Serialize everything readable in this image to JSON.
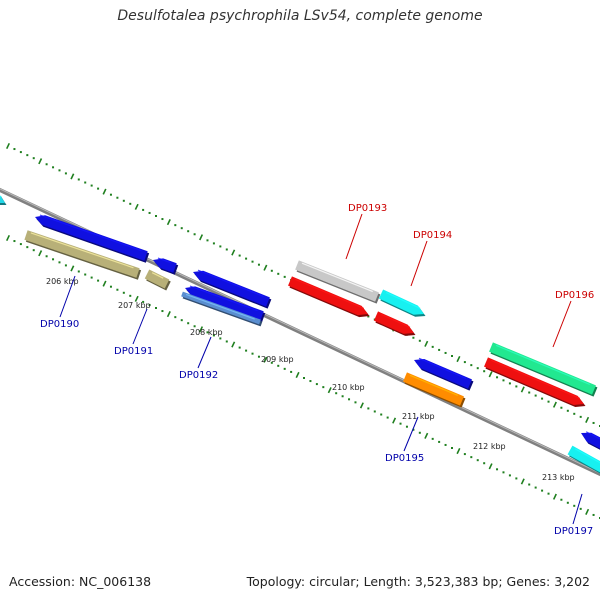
{
  "title": "Desulfotalea psychrophila LSv54, complete genome",
  "footer": {
    "accession": "Accession: NC_006138",
    "summary": "Topology: circular; Length: 3,523,383 bp; Genes: 3,202"
  },
  "colors": {
    "dots": "#1f7f1f",
    "backbone": "#808080",
    "label_forward": "#cc0000",
    "label_reverse": "#0000aa"
  },
  "tick_labels": [
    "206 kbp",
    "207 kbp",
    "208 kbp",
    "209 kbp",
    "210 kbp",
    "211 kbp",
    "212 kbp",
    "213 kbp"
  ],
  "genes": [
    {
      "label": "",
      "strand": "reverse",
      "color": "#22d8e8"
    },
    {
      "label": "DP0190",
      "strand": "reverse",
      "color": "#1010e0"
    },
    {
      "label": "",
      "strand": "reverse",
      "color": "#b8b078"
    },
    {
      "label": "",
      "strand": "reverse",
      "color": "#b8b078"
    },
    {
      "label": "",
      "strand": "reverse",
      "color": "#1010e0"
    },
    {
      "label": "DP0191",
      "strand": "reverse",
      "color": "#1010e0"
    },
    {
      "label": "",
      "strand": "reverse",
      "color": "#1010e0"
    },
    {
      "label": "DP0192",
      "strand": "reverse",
      "color": "#5a8ed0"
    },
    {
      "label": "",
      "strand": "forward",
      "color": "#c8c8c8"
    },
    {
      "label": "DP0193",
      "strand": "forward",
      "color": "#ee1010"
    },
    {
      "label": "DP0194",
      "strand": "forward",
      "color": "#18f0f0"
    },
    {
      "label": "",
      "strand": "forward",
      "color": "#ee1010"
    },
    {
      "label": "",
      "strand": "reverse",
      "color": "#1010e0"
    },
    {
      "label": "DP0195",
      "strand": "reverse",
      "color": "#ff8c00"
    },
    {
      "label": "",
      "strand": "forward",
      "color": "#22e890"
    },
    {
      "label": "DP0196",
      "strand": "forward",
      "color": "#ee1010"
    },
    {
      "label": "",
      "strand": "reverse",
      "color": "#1010e0"
    },
    {
      "label": "DP0197",
      "strand": "reverse",
      "color": "#18f0f0"
    }
  ]
}
